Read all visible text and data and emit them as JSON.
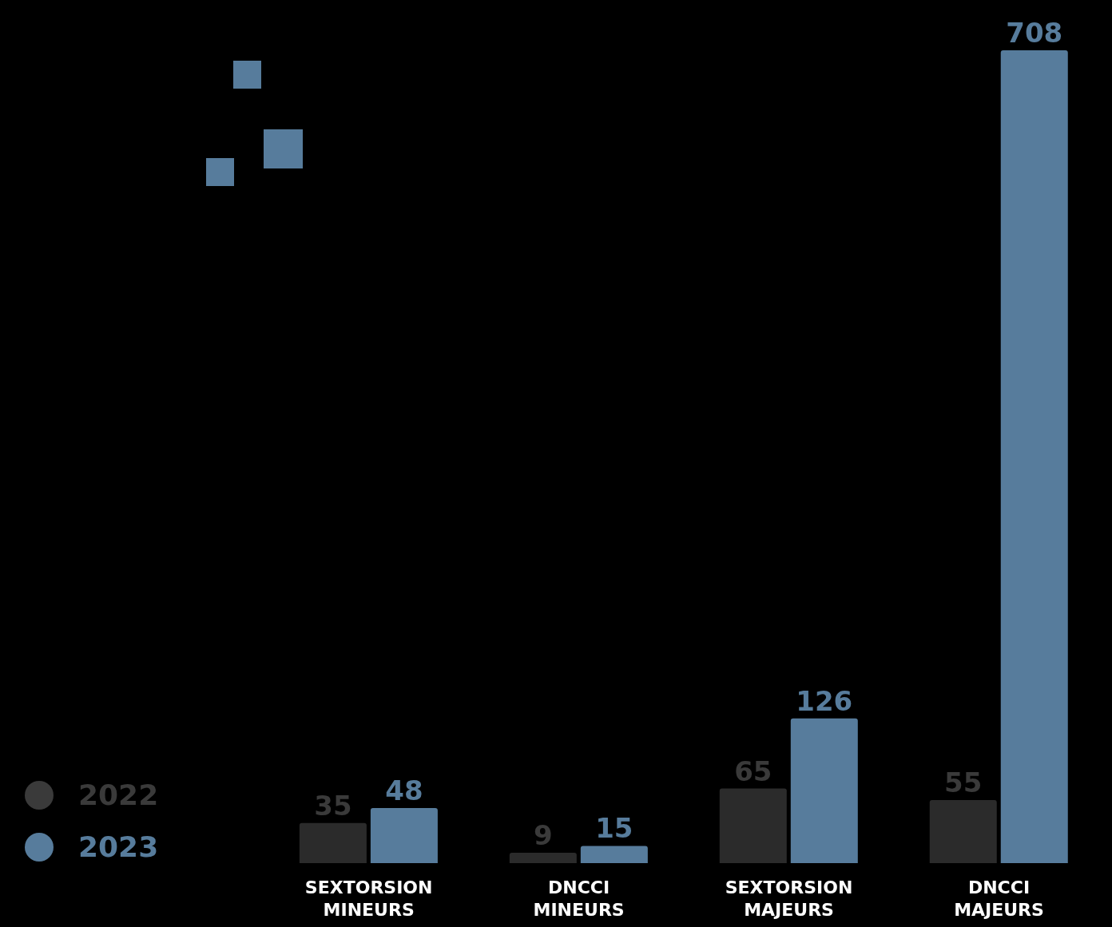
{
  "chart_data": {
    "type": "bar",
    "categories": [
      "SEXTORSION MINEURS",
      "DNCCI MINEURS",
      "SEXTORSION MAJEURS",
      "DNCCI MAJEURS"
    ],
    "series": [
      {
        "name": "2022",
        "color": "#2b2b2b",
        "values": [
          35,
          9,
          65,
          55
        ]
      },
      {
        "name": "2023",
        "color": "#577c9c",
        "values": [
          48,
          15,
          126,
          708
        ]
      }
    ],
    "data_labels": true,
    "legend": "bottom left",
    "grid": false
  }
}
